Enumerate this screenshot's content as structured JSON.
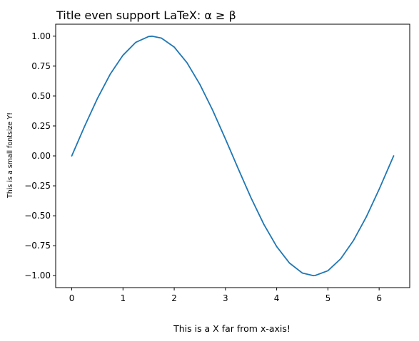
{
  "chart_data": {
    "type": "line",
    "title": "Title even support LaTeX: α ≥ β",
    "xlabel": "This is a X far from x-axis!",
    "ylabel": "This is a small fontsize Y!",
    "xlim": [
      -0.314,
      6.597
    ],
    "ylim": [
      -1.1,
      1.1
    ],
    "xticks": [
      0,
      1,
      2,
      3,
      4,
      5,
      6
    ],
    "xtick_labels": [
      "0",
      "1",
      "2",
      "3",
      "4",
      "5",
      "6"
    ],
    "yticks": [
      1.0,
      0.75,
      0.5,
      0.25,
      0.0,
      -0.25,
      -0.5,
      -0.75,
      -1.0
    ],
    "ytick_labels": [
      "1.00",
      "0.75",
      "0.50",
      "0.25",
      "0.00",
      "−0.25",
      "−0.50",
      "−0.75",
      "−1.00"
    ],
    "grid": false,
    "series": [
      {
        "color": "#1f77b4",
        "function": "sin(x)",
        "x_range": [
          0,
          6.283
        ],
        "points": [
          [
            0.0,
            0.0
          ],
          [
            0.25,
            0.247
          ],
          [
            0.5,
            0.479
          ],
          [
            0.75,
            0.682
          ],
          [
            1.0,
            0.841
          ],
          [
            1.25,
            0.949
          ],
          [
            1.5,
            0.997
          ],
          [
            1.571,
            1.0
          ],
          [
            1.75,
            0.984
          ],
          [
            2.0,
            0.909
          ],
          [
            2.25,
            0.778
          ],
          [
            2.5,
            0.598
          ],
          [
            2.75,
            0.382
          ],
          [
            3.0,
            0.141
          ],
          [
            3.142,
            0.0
          ],
          [
            3.25,
            -0.108
          ],
          [
            3.5,
            -0.351
          ],
          [
            3.75,
            -0.572
          ],
          [
            4.0,
            -0.757
          ],
          [
            4.25,
            -0.895
          ],
          [
            4.5,
            -0.978
          ],
          [
            4.712,
            -1.0
          ],
          [
            4.75,
            -0.999
          ],
          [
            5.0,
            -0.959
          ],
          [
            5.25,
            -0.859
          ],
          [
            5.5,
            -0.706
          ],
          [
            5.75,
            -0.509
          ],
          [
            6.0,
            -0.279
          ],
          [
            6.283,
            0.0
          ]
        ]
      }
    ]
  }
}
